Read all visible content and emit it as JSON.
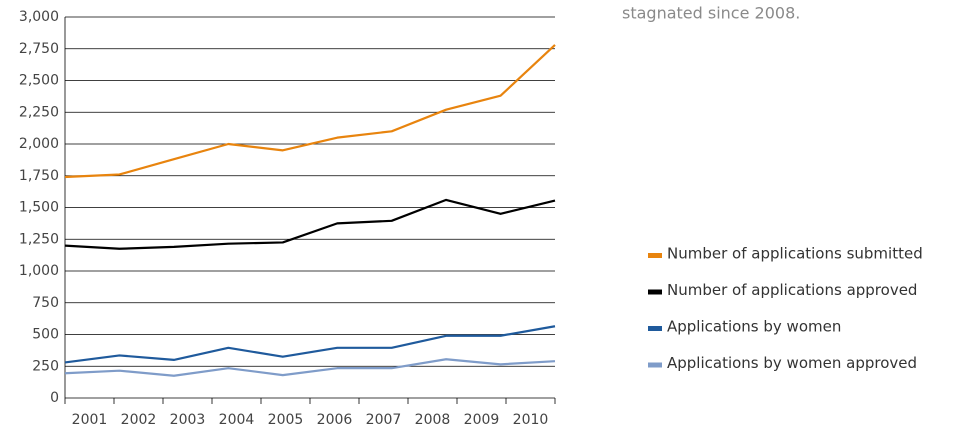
{
  "chart_data": {
    "type": "line",
    "annotation": "stagnated since 2008.",
    "categories": [
      "2001",
      "2002",
      "2003",
      "2004",
      "2005",
      "2006",
      "2007",
      "2008",
      "2009",
      "2010"
    ],
    "series": [
      {
        "name": "Number of applications submitted",
        "color": "#e8840e",
        "values": [
          1740,
          1760,
          1880,
          2000,
          1950,
          2050,
          2100,
          2270,
          2380,
          2780
        ]
      },
      {
        "name": "Number of applications approved",
        "color": "#000000",
        "values": [
          1200,
          1175,
          1190,
          1215,
          1225,
          1375,
          1395,
          1560,
          1450,
          1555
        ]
      },
      {
        "name": "Applications by women",
        "color": "#1f5a9c",
        "values": [
          280,
          335,
          300,
          395,
          325,
          395,
          395,
          490,
          490,
          565
        ]
      },
      {
        "name": "Applications by women approved",
        "color": "#7f9cc9",
        "values": [
          195,
          215,
          175,
          235,
          180,
          235,
          235,
          305,
          265,
          290
        ]
      }
    ],
    "ylim": [
      0,
      3000
    ],
    "yticks": [
      0,
      250,
      500,
      750,
      {
        "value": 1000,
        "label": "1,000"
      },
      {
        "value": 1250,
        "label": "1,250"
      },
      {
        "value": 1500,
        "label": "1,500"
      },
      {
        "value": 1750,
        "label": "1,750"
      },
      {
        "value": 2000,
        "label": "2,000"
      },
      {
        "value": 2250,
        "label": "2,250"
      },
      {
        "value": 2500,
        "label": "2,500"
      },
      {
        "value": 2750,
        "label": "2,750"
      },
      {
        "value": 3000,
        "label": "3,000"
      }
    ],
    "grid": true,
    "legend": "right"
  }
}
